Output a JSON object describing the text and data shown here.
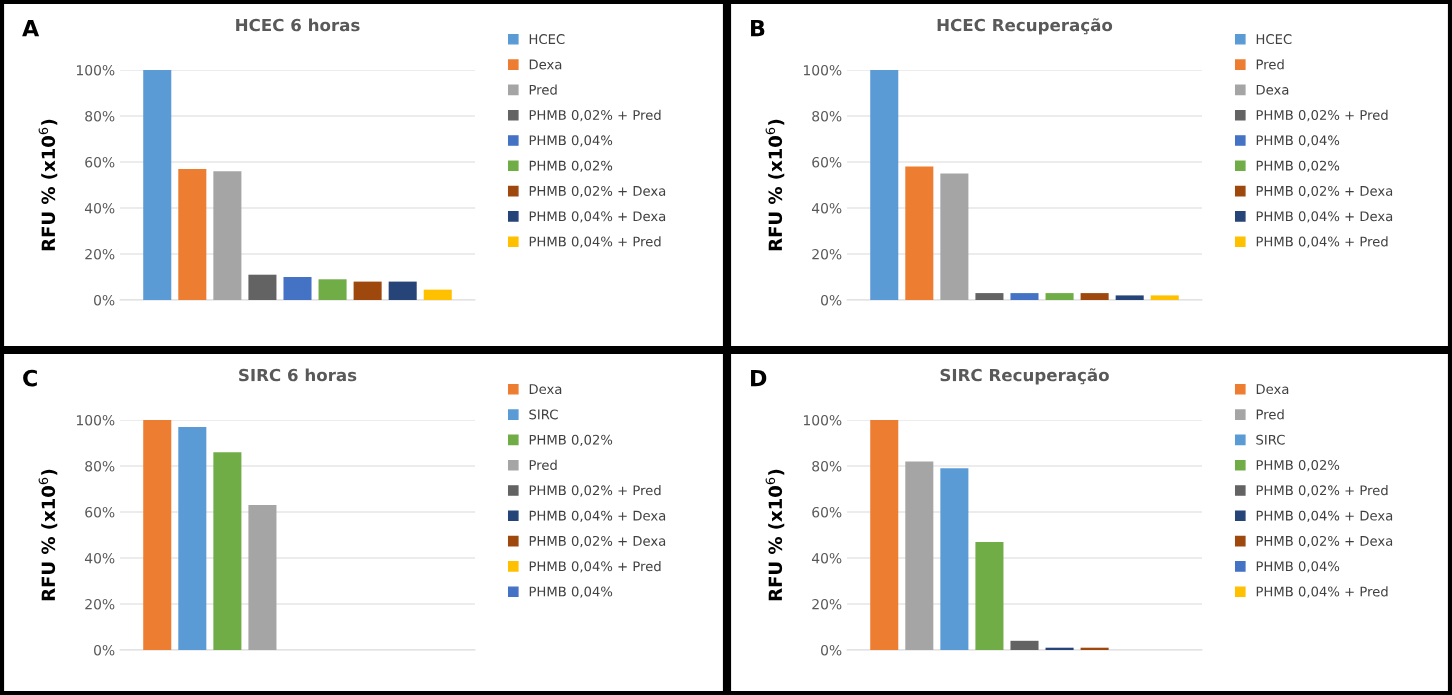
{
  "chart_data": [
    {
      "type": "bar",
      "title": "HCEC 6 horas",
      "ylabel": "RFU % (x10$^{6}$)",
      "annotations": [
        "A"
      ],
      "categories": [
        null
      ],
      "ylim": [
        0,
        100
      ],
      "yticks": [
        {
          "value": 0,
          "label": "0%"
        },
        {
          "value": 20,
          "label": "20%"
        },
        {
          "value": 40,
          "label": "40%"
        },
        {
          "value": 60,
          "label": "60%"
        },
        {
          "value": 80,
          "label": "80%"
        },
        {
          "value": 100,
          "label": "100%"
        }
      ],
      "grid": "y",
      "legend": "right",
      "series": [
        {
          "name": "HCEC",
          "color": "#5b9bd5",
          "values": [
            100
          ]
        },
        {
          "name": "Dexa",
          "color": "#ed7d31",
          "values": [
            57
          ]
        },
        {
          "name": "Pred",
          "color": "#a5a5a5",
          "values": [
            56
          ]
        },
        {
          "name": "PHMB 0,02% + Pred",
          "color": "#636363",
          "values": [
            11
          ]
        },
        {
          "name": "PHMB 0,04%",
          "color": "#4472c4",
          "values": [
            10
          ]
        },
        {
          "name": "PHMB 0,02%",
          "color": "#70ad47",
          "values": [
            9
          ]
        },
        {
          "name": "PHMB 0,02% + Dexa",
          "color": "#9e480e",
          "values": [
            8
          ]
        },
        {
          "name": "PHMB 0,04% + Dexa",
          "color": "#264478",
          "values": [
            8
          ]
        },
        {
          "name": "PHMB 0,04% + Pred",
          "color": "#ffc000",
          "values": [
            4.5
          ]
        }
      ]
    },
    {
      "type": "bar",
      "title": "HCEC Recuperação",
      "ylabel": "RFU % (x10$^{6}$)",
      "annotations": [
        "B"
      ],
      "categories": [
        null
      ],
      "ylim": [
        0,
        100
      ],
      "yticks": [
        {
          "value": 0,
          "label": "0%"
        },
        {
          "value": 20,
          "label": "20%"
        },
        {
          "value": 40,
          "label": "40%"
        },
        {
          "value": 60,
          "label": "60%"
        },
        {
          "value": 80,
          "label": "80%"
        },
        {
          "value": 100,
          "label": "100%"
        }
      ],
      "grid": "y",
      "legend": "right",
      "series": [
        {
          "name": "HCEC",
          "color": "#5b9bd5",
          "values": [
            100
          ]
        },
        {
          "name": "Pred",
          "color": "#ed7d31",
          "values": [
            58
          ]
        },
        {
          "name": "Dexa",
          "color": "#a5a5a5",
          "values": [
            55
          ]
        },
        {
          "name": "PHMB 0,02% + Pred",
          "color": "#636363",
          "values": [
            3
          ]
        },
        {
          "name": "PHMB 0,04%",
          "color": "#4472c4",
          "values": [
            3
          ]
        },
        {
          "name": "PHMB 0,02%",
          "color": "#70ad47",
          "values": [
            3
          ]
        },
        {
          "name": "PHMB 0,02% + Dexa",
          "color": "#9e480e",
          "values": [
            3
          ]
        },
        {
          "name": "PHMB 0,04% + Dexa",
          "color": "#264478",
          "values": [
            2
          ]
        },
        {
          "name": "PHMB 0,04% + Pred",
          "color": "#ffc000",
          "values": [
            2
          ]
        }
      ]
    },
    {
      "type": "bar",
      "title": "SIRC 6 horas",
      "ylabel": "RFU % (x10$^{6}$)",
      "annotations": [
        "C"
      ],
      "categories": [
        null
      ],
      "ylim": [
        0,
        100
      ],
      "yticks": [
        {
          "value": 0,
          "label": "0%"
        },
        {
          "value": 20,
          "label": "20%"
        },
        {
          "value": 40,
          "label": "40%"
        },
        {
          "value": 60,
          "label": "60%"
        },
        {
          "value": 80,
          "label": "80%"
        },
        {
          "value": 100,
          "label": "100%"
        }
      ],
      "grid": "y",
      "legend": "right",
      "series": [
        {
          "name": "Dexa",
          "color": "#ed7d31",
          "values": [
            100
          ]
        },
        {
          "name": "SIRC",
          "color": "#5b9bd5",
          "values": [
            97
          ]
        },
        {
          "name": "PHMB 0,02%",
          "color": "#70ad47",
          "values": [
            86
          ]
        },
        {
          "name": "Pred",
          "color": "#a5a5a5",
          "values": [
            63
          ]
        },
        {
          "name": "PHMB 0,02% + Pred",
          "color": "#636363",
          "values": [
            0
          ]
        },
        {
          "name": "PHMB 0,04% + Dexa",
          "color": "#264478",
          "values": [
            0
          ]
        },
        {
          "name": "PHMB 0,02% + Dexa",
          "color": "#9e480e",
          "values": [
            0
          ]
        },
        {
          "name": "PHMB 0,04% + Pred",
          "color": "#ffc000",
          "values": [
            0
          ]
        },
        {
          "name": "PHMB 0,04%",
          "color": "#4472c4",
          "values": [
            0
          ]
        }
      ]
    },
    {
      "type": "bar",
      "title": "SIRC Recuperação",
      "ylabel": "RFU % (x10$^{6}$)",
      "annotations": [
        "D"
      ],
      "categories": [
        null
      ],
      "ylim": [
        0,
        100
      ],
      "yticks": [
        {
          "value": 0,
          "label": "0%"
        },
        {
          "value": 20,
          "label": "20%"
        },
        {
          "value": 40,
          "label": "40%"
        },
        {
          "value": 60,
          "label": "60%"
        },
        {
          "value": 80,
          "label": "80%"
        },
        {
          "value": 100,
          "label": "100%"
        }
      ],
      "grid": "y",
      "legend": "right",
      "series": [
        {
          "name": "Dexa",
          "color": "#ed7d31",
          "values": [
            100
          ]
        },
        {
          "name": "Pred",
          "color": "#a5a5a5",
          "values": [
            82
          ]
        },
        {
          "name": "SIRC",
          "color": "#5b9bd5",
          "values": [
            79
          ]
        },
        {
          "name": "PHMB 0,02%",
          "color": "#70ad47",
          "values": [
            47
          ]
        },
        {
          "name": "PHMB 0,02% + Pred",
          "color": "#636363",
          "values": [
            4
          ]
        },
        {
          "name": "PHMB 0,04% + Dexa",
          "color": "#264478",
          "values": [
            1
          ]
        },
        {
          "name": "PHMB 0,02% + Dexa",
          "color": "#9e480e",
          "values": [
            1
          ]
        },
        {
          "name": "PHMB 0,04%",
          "color": "#4472c4",
          "values": [
            0
          ]
        },
        {
          "name": "PHMB 0,04% + Pred",
          "color": "#ffc000",
          "values": [
            0
          ]
        }
      ]
    }
  ]
}
